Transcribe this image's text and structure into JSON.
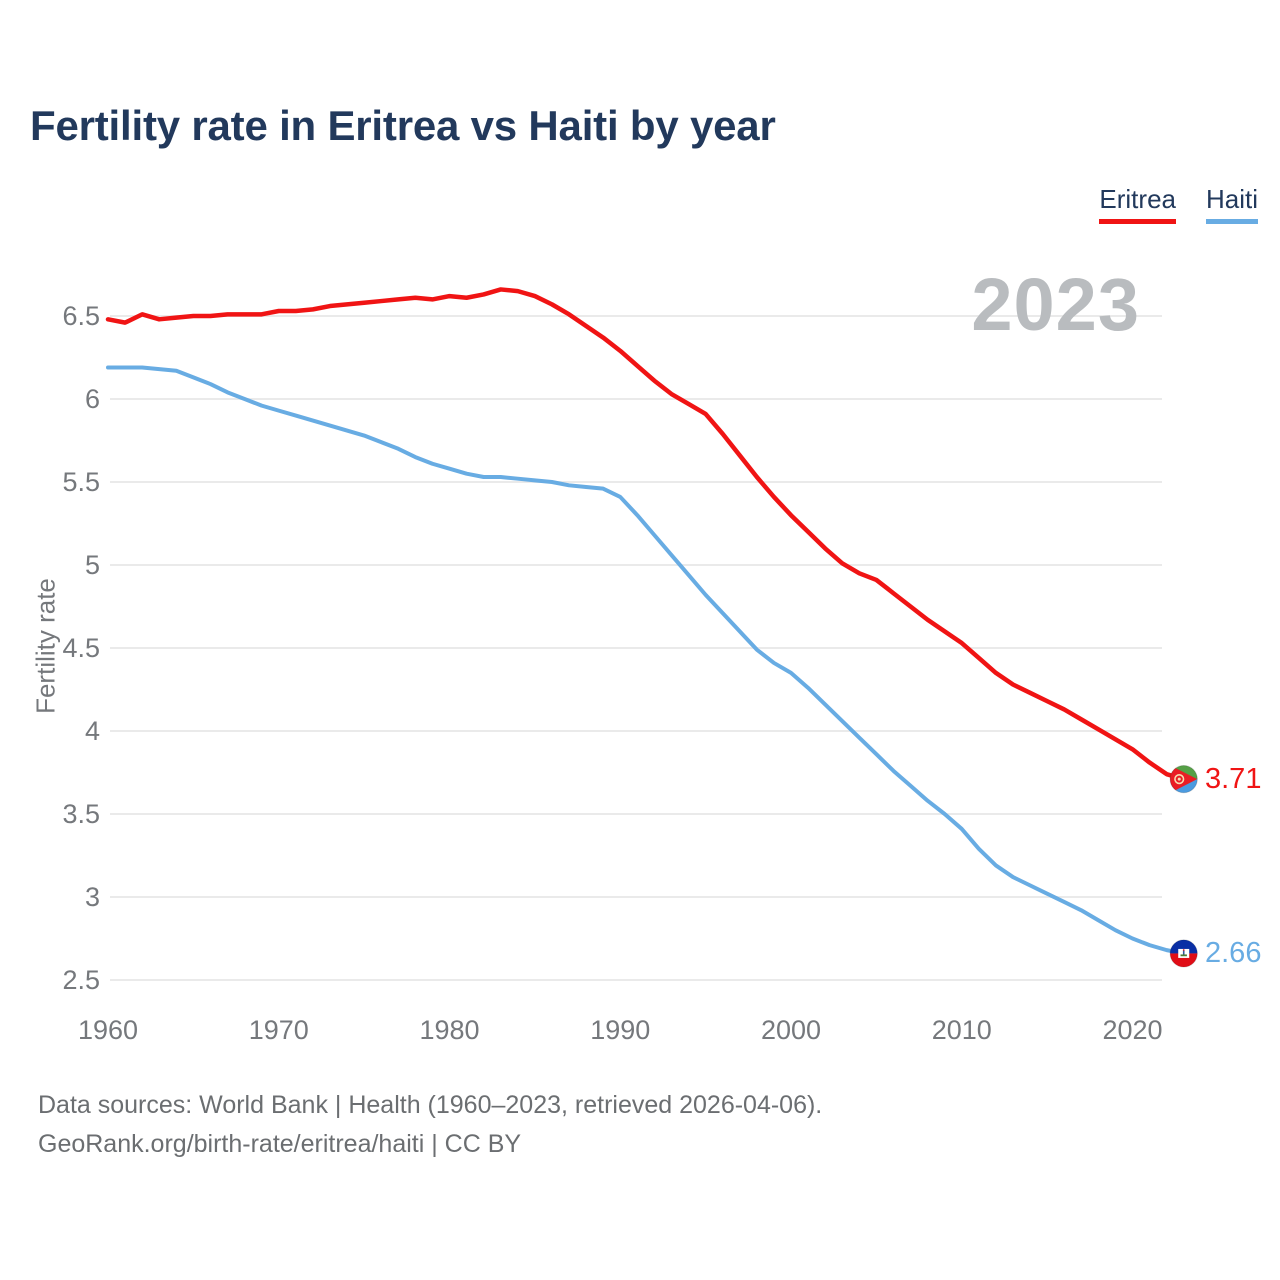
{
  "title": "Fertility rate in Eritrea vs Haiti by year",
  "watermark": "2023",
  "legend": [
    {
      "label": "Eritrea",
      "color": "#f01414"
    },
    {
      "label": "Haiti",
      "color": "#68ace3"
    }
  ],
  "footer": {
    "line1": "Data sources: World Bank | Health (1960–2023, retrieved 2026-04-06).",
    "line2": "GeoRank.org/birth-rate/eritrea/haiti | CC BY"
  },
  "chart_data": {
    "type": "line",
    "title": "Fertility rate in Eritrea vs Haiti by year",
    "xlabel": "",
    "ylabel": "Fertility rate",
    "ylim": [
      2.5,
      6.5
    ],
    "yticks": [
      6.5,
      6,
      5.5,
      5,
      4.5,
      4,
      3.5,
      3,
      2.5
    ],
    "xticks": [
      1960,
      1970,
      1980,
      1990,
      2000,
      2010,
      2020
    ],
    "grid": true,
    "legend_position": "top-right",
    "x": [
      1960,
      1961,
      1962,
      1963,
      1964,
      1965,
      1966,
      1967,
      1968,
      1969,
      1970,
      1971,
      1972,
      1973,
      1974,
      1975,
      1976,
      1977,
      1978,
      1979,
      1980,
      1981,
      1982,
      1983,
      1984,
      1985,
      1986,
      1987,
      1988,
      1989,
      1990,
      1991,
      1992,
      1993,
      1994,
      1995,
      1996,
      1997,
      1998,
      1999,
      2000,
      2001,
      2002,
      2003,
      2004,
      2005,
      2006,
      2007,
      2008,
      2009,
      2010,
      2011,
      2012,
      2013,
      2014,
      2015,
      2016,
      2017,
      2018,
      2019,
      2020,
      2021,
      2022,
      2023
    ],
    "series": [
      {
        "name": "Eritrea",
        "flag": "eritrea",
        "color": "#f01414",
        "end_label": "3.71",
        "values": [
          6.48,
          6.46,
          6.51,
          6.48,
          6.49,
          6.5,
          6.5,
          6.51,
          6.51,
          6.51,
          6.53,
          6.53,
          6.54,
          6.56,
          6.57,
          6.58,
          6.59,
          6.6,
          6.61,
          6.6,
          6.62,
          6.61,
          6.63,
          6.66,
          6.65,
          6.62,
          6.57,
          6.51,
          6.44,
          6.37,
          6.29,
          6.2,
          6.11,
          6.03,
          5.97,
          5.91,
          5.79,
          5.66,
          5.53,
          5.41,
          5.3,
          5.2,
          5.1,
          5.01,
          4.95,
          4.91,
          4.83,
          4.75,
          4.67,
          4.6,
          4.53,
          4.44,
          4.35,
          4.28,
          4.23,
          4.18,
          4.13,
          4.07,
          4.01,
          3.95,
          3.89,
          3.81,
          3.74,
          3.71
        ]
      },
      {
        "name": "Haiti",
        "flag": "haiti",
        "color": "#68ace3",
        "end_label": "2.66",
        "values": [
          6.19,
          6.19,
          6.19,
          6.18,
          6.17,
          6.13,
          6.09,
          6.04,
          6.0,
          5.96,
          5.93,
          5.9,
          5.87,
          5.84,
          5.81,
          5.78,
          5.74,
          5.7,
          5.65,
          5.61,
          5.58,
          5.55,
          5.53,
          5.53,
          5.52,
          5.51,
          5.5,
          5.48,
          5.47,
          5.46,
          5.41,
          5.3,
          5.18,
          5.06,
          4.94,
          4.82,
          4.71,
          4.6,
          4.49,
          4.41,
          4.35,
          4.26,
          4.16,
          4.06,
          3.96,
          3.86,
          3.76,
          3.67,
          3.58,
          3.5,
          3.41,
          3.29,
          3.19,
          3.12,
          3.07,
          3.02,
          2.97,
          2.92,
          2.86,
          2.8,
          2.75,
          2.71,
          2.68,
          2.66
        ]
      }
    ]
  }
}
